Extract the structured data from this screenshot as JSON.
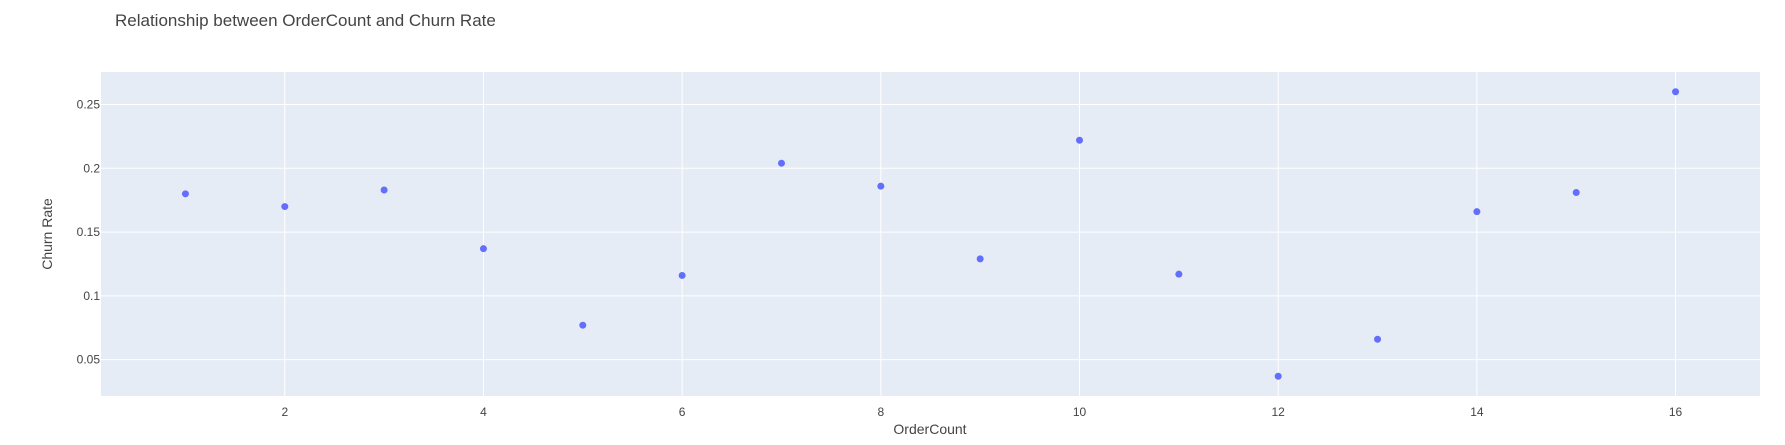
{
  "chart_data": {
    "type": "scatter",
    "title": "Relationship between OrderCount and Churn Rate",
    "xlabel": "OrderCount",
    "ylabel": "Churn Rate",
    "xlim": [
      0.15,
      16.85
    ],
    "ylim": [
      0.0215,
      0.2755
    ],
    "x_ticks": [
      2,
      4,
      6,
      8,
      10,
      12,
      14,
      16
    ],
    "y_ticks": [
      0.05,
      0.1,
      0.15,
      0.2,
      0.25
    ],
    "grid": true,
    "colors": {
      "plot_bg": "#E5ECF6",
      "grid": "#FFFFFF",
      "marker": "#636EFA",
      "text": "#444444"
    },
    "series": [
      {
        "x": [
          1,
          2,
          3,
          4,
          5,
          6,
          7,
          8,
          9,
          10,
          11,
          12,
          13,
          14,
          15,
          16
        ],
        "y": [
          0.18,
          0.17,
          0.183,
          0.137,
          0.077,
          0.116,
          0.204,
          0.186,
          0.129,
          0.222,
          0.117,
          0.037,
          0.066,
          0.166,
          0.181,
          0.26
        ]
      }
    ]
  }
}
